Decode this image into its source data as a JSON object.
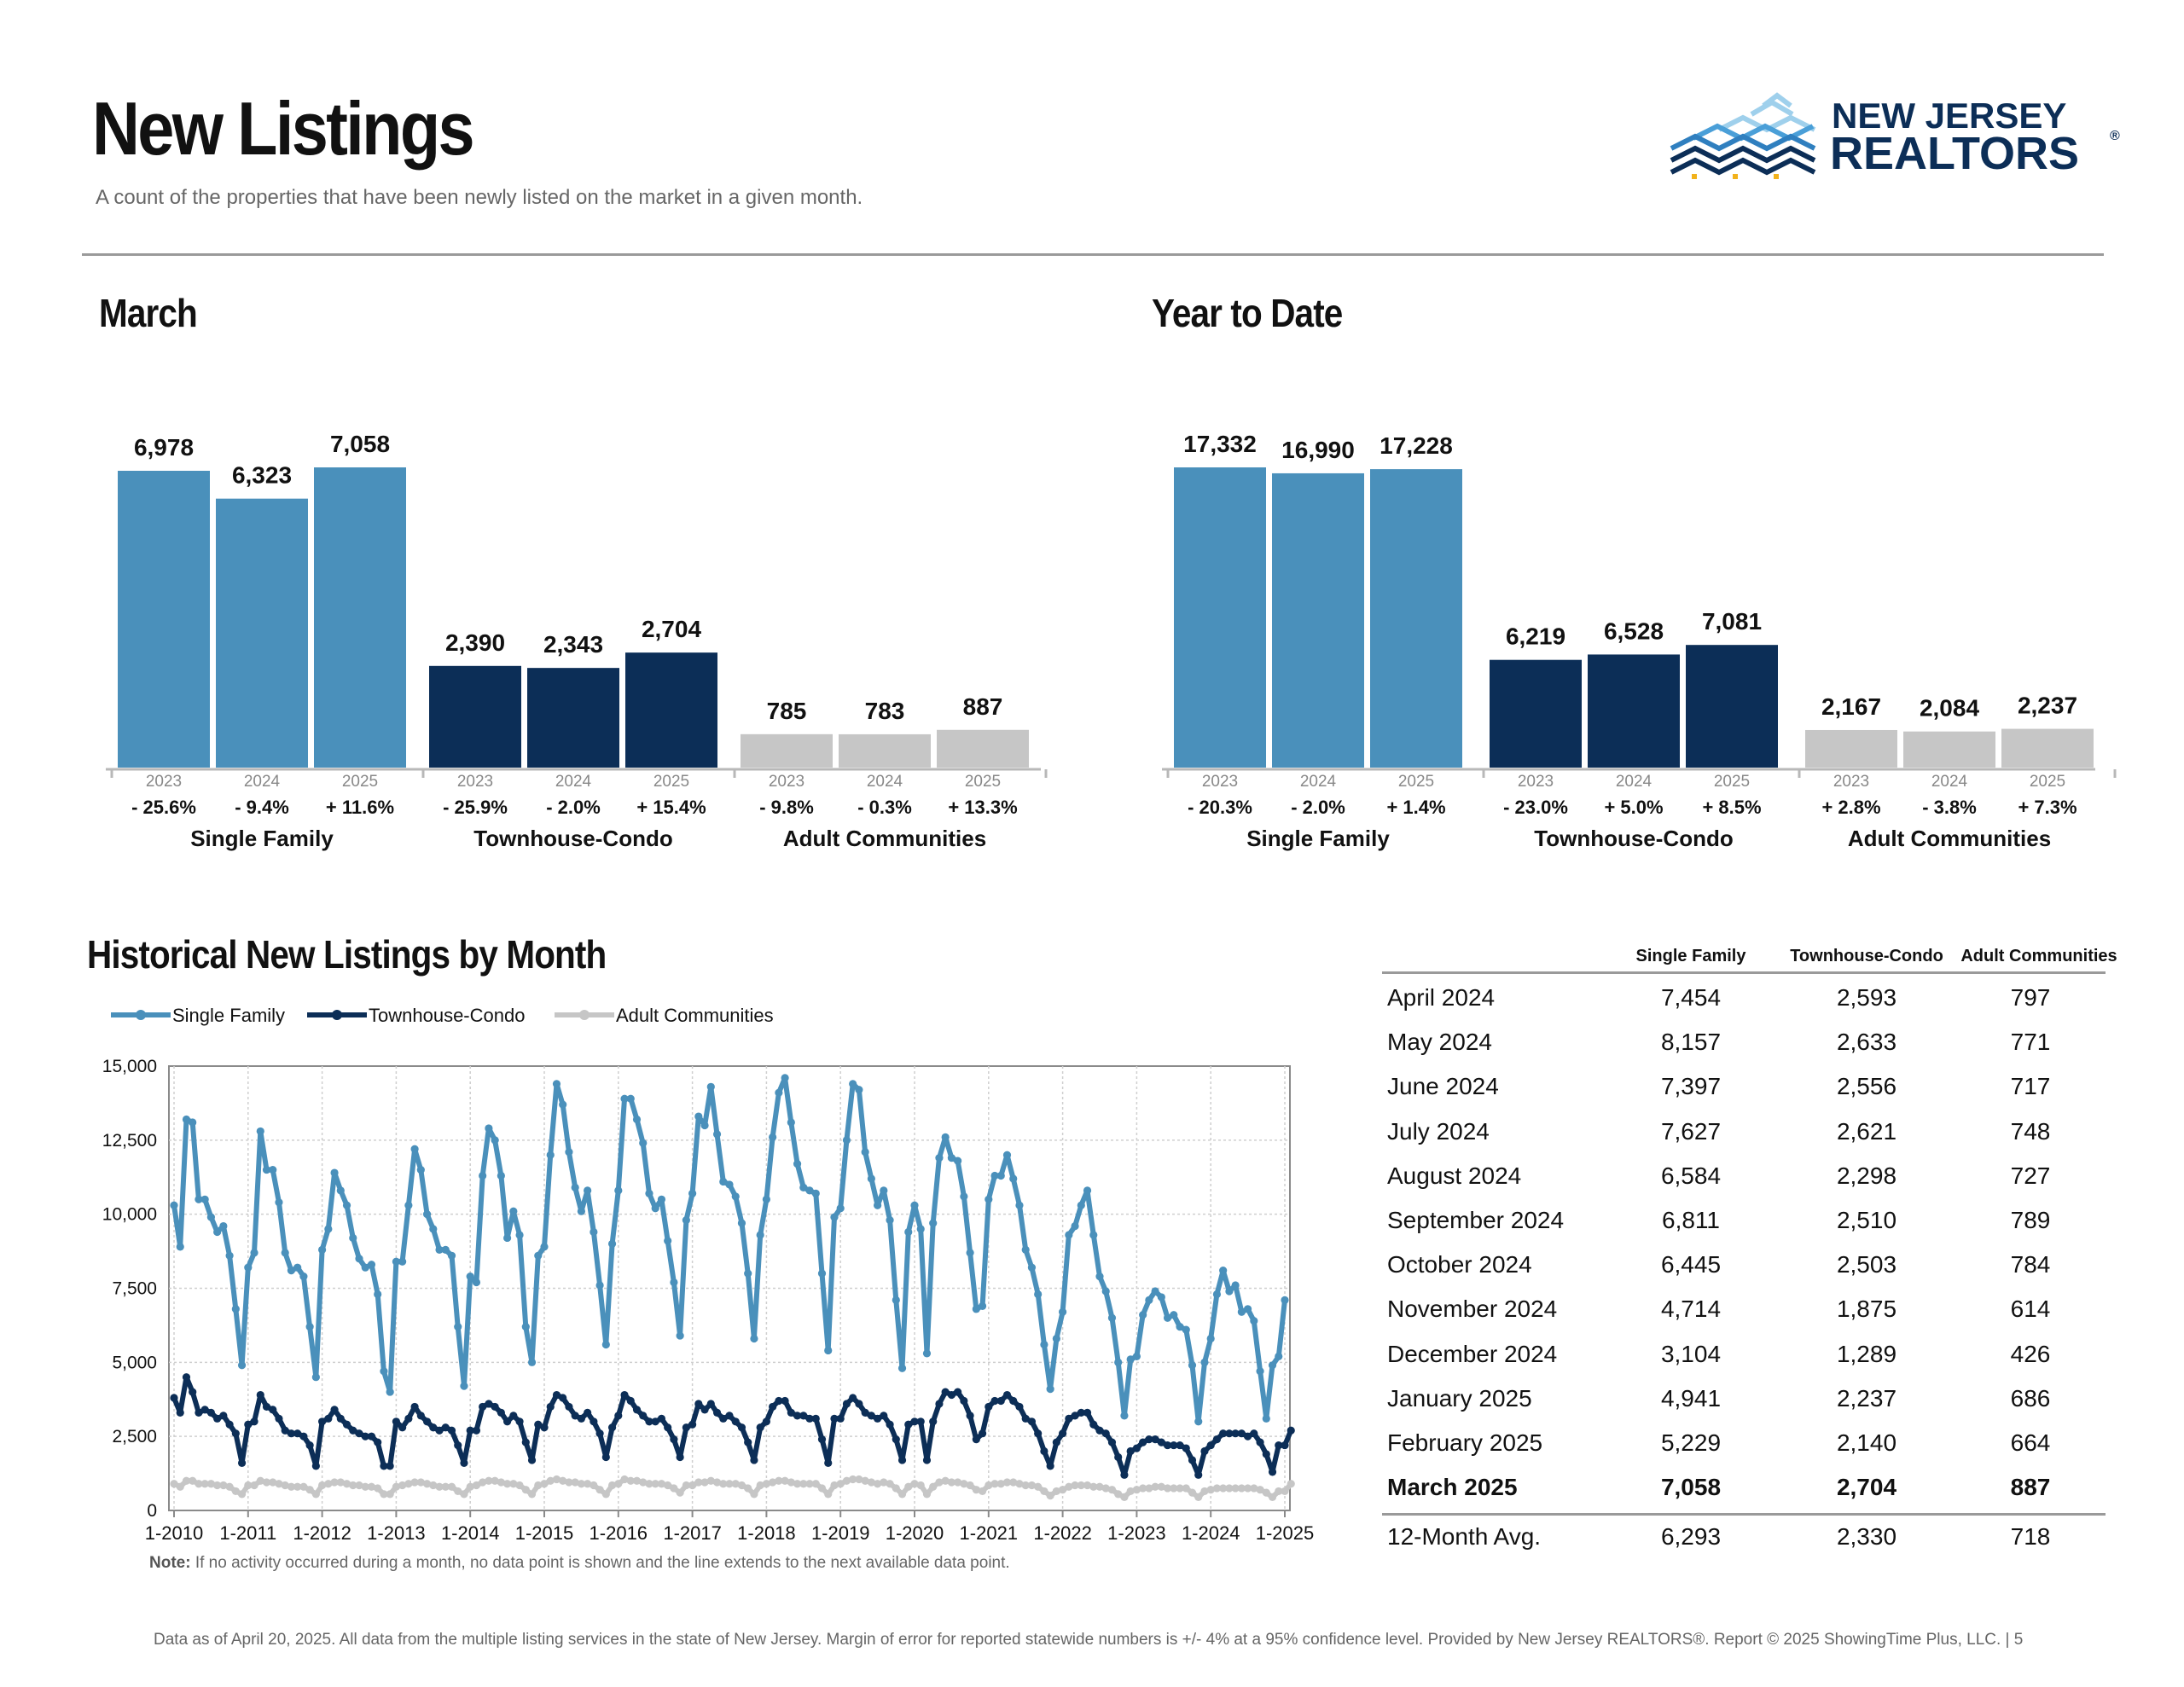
{
  "header": {
    "title": "New Listings",
    "subtitle": "A count of the properties that have been newly listed on the market in a given month."
  },
  "logo": {
    "line1": "NEW JERSEY",
    "line2": "REALTORS",
    "mark": "®"
  },
  "colors": {
    "single_family": "#4a90bb",
    "townhouse_condo": "#0c2e57",
    "adult_communities": "#c6c6c6"
  },
  "chart_data": [
    {
      "type": "bar",
      "title": "March",
      "groups": [
        {
          "name": "Single Family",
          "years": [
            "2023",
            "2024",
            "2025"
          ],
          "values": [
            6978,
            6323,
            7058
          ],
          "value_labels": [
            "6,978",
            "6,323",
            "7,058"
          ],
          "changes": [
            "- 25.6%",
            "- 9.4%",
            "+ 11.6%"
          ]
        },
        {
          "name": "Townhouse-Condo",
          "years": [
            "2023",
            "2024",
            "2025"
          ],
          "values": [
            2390,
            2343,
            2704
          ],
          "value_labels": [
            "2,390",
            "2,343",
            "2,704"
          ],
          "changes": [
            "- 25.9%",
            "- 2.0%",
            "+ 15.4%"
          ]
        },
        {
          "name": "Adult Communities",
          "years": [
            "2023",
            "2024",
            "2025"
          ],
          "values": [
            785,
            783,
            887
          ],
          "value_labels": [
            "785",
            "783",
            "887"
          ],
          "changes": [
            "- 9.8%",
            "- 0.3%",
            "+ 13.3%"
          ]
        }
      ]
    },
    {
      "type": "bar",
      "title": "Year to Date",
      "groups": [
        {
          "name": "Single Family",
          "years": [
            "2023",
            "2024",
            "2025"
          ],
          "values": [
            17332,
            16990,
            17228
          ],
          "value_labels": [
            "17,332",
            "16,990",
            "17,228"
          ],
          "changes": [
            "- 20.3%",
            "- 2.0%",
            "+ 1.4%"
          ]
        },
        {
          "name": "Townhouse-Condo",
          "years": [
            "2023",
            "2024",
            "2025"
          ],
          "values": [
            6219,
            6528,
            7081
          ],
          "value_labels": [
            "6,219",
            "6,528",
            "7,081"
          ],
          "changes": [
            "- 23.0%",
            "+ 5.0%",
            "+ 8.5%"
          ]
        },
        {
          "name": "Adult Communities",
          "years": [
            "2023",
            "2024",
            "2025"
          ],
          "values": [
            2167,
            2084,
            2237
          ],
          "value_labels": [
            "2,167",
            "2,084",
            "2,237"
          ],
          "changes": [
            "+ 2.8%",
            "- 3.8%",
            "+ 7.3%"
          ]
        }
      ]
    },
    {
      "type": "line",
      "title": "Historical New Listings by Month",
      "ylim": [
        0,
        15000
      ],
      "yticks": [
        "0",
        "2,500",
        "5,000",
        "7,500",
        "10,000",
        "12,500",
        "15,000"
      ],
      "xticks": [
        "1-2010",
        "1-2011",
        "1-2012",
        "1-2013",
        "1-2014",
        "1-2015",
        "1-2016",
        "1-2017",
        "1-2018",
        "1-2019",
        "1-2020",
        "1-2021",
        "1-2022",
        "1-2023",
        "1-2024",
        "1-2025"
      ],
      "grid": true,
      "legend_position": "top-left",
      "series": [
        {
          "name": "Single Family",
          "values": [
            10300,
            8900,
            13200,
            13100,
            10500,
            10500,
            9900,
            9400,
            9600,
            8600,
            6800,
            4900,
            8200,
            8700,
            12800,
            11500,
            11500,
            10400,
            8700,
            8100,
            8200,
            7900,
            6200,
            4500,
            8800,
            9500,
            11400,
            10800,
            10300,
            9200,
            8500,
            8200,
            8300,
            7300,
            4700,
            4000,
            8400,
            8400,
            10300,
            12200,
            11500,
            10000,
            9500,
            8800,
            8800,
            8600,
            6200,
            4200,
            7900,
            7700,
            11300,
            12900,
            12500,
            11300,
            9200,
            10100,
            9300,
            6200,
            5000,
            8600,
            8900,
            12000,
            14400,
            13700,
            12100,
            10900,
            10100,
            10800,
            9400,
            7600,
            5600,
            9000,
            10800,
            13900,
            13900,
            13200,
            12400,
            10700,
            10200,
            10500,
            9100,
            7700,
            5900,
            9800,
            10700,
            13300,
            13000,
            14300,
            12700,
            11100,
            11000,
            10600,
            9700,
            8000,
            5800,
            9300,
            10500,
            12600,
            14100,
            14600,
            13100,
            11700,
            10900,
            10800,
            10700,
            8000,
            5400,
            9900,
            10200,
            12500,
            14400,
            14200,
            12100,
            11200,
            10300,
            10800,
            9800,
            7100,
            4800,
            9400,
            10300,
            9500,
            5300,
            9700,
            11900,
            12600,
            11900,
            11800,
            10600,
            8700,
            6800,
            6900,
            10500,
            11300,
            11300,
            12000,
            11200,
            10300,
            8800,
            8200,
            7300,
            5600,
            4100,
            5800,
            6700,
            9300,
            9600,
            10300,
            10800,
            9300,
            7900,
            7400,
            6500,
            5000,
            3200,
            5100,
            5200,
            6600,
            7100,
            7400,
            7200,
            6500,
            6600,
            6200,
            6100,
            4900,
            3000,
            5000,
            5800,
            7300,
            8100,
            7400,
            7600,
            6700,
            6800,
            6400,
            4700,
            3100,
            4900,
            5200,
            7100
          ]
        },
        {
          "name": "Townhouse-Condo",
          "values": [
            3800,
            3300,
            4500,
            4000,
            3300,
            3400,
            3300,
            3100,
            3200,
            2900,
            2600,
            1600,
            2900,
            3000,
            3900,
            3500,
            3400,
            3100,
            2700,
            2600,
            2600,
            2500,
            2200,
            1500,
            3000,
            3100,
            3400,
            3100,
            2900,
            2700,
            2600,
            2500,
            2500,
            2300,
            1500,
            1500,
            3000,
            2800,
            3100,
            3500,
            3200,
            3000,
            2800,
            2700,
            2800,
            2700,
            2200,
            1600,
            2700,
            2700,
            3500,
            3600,
            3500,
            3300,
            3000,
            3200,
            3000,
            2300,
            1700,
            2900,
            2800,
            3500,
            3900,
            3800,
            3500,
            3200,
            3100,
            3300,
            3000,
            2600,
            1800,
            2800,
            3200,
            3900,
            3700,
            3400,
            3200,
            3000,
            3000,
            3100,
            2800,
            2400,
            1800,
            2800,
            2900,
            3600,
            3400,
            3600,
            3300,
            3100,
            3200,
            3000,
            2800,
            2300,
            1700,
            2800,
            3000,
            3500,
            3700,
            3700,
            3300,
            3200,
            3200,
            3100,
            3100,
            2400,
            1600,
            3100,
            3100,
            3600,
            3800,
            3600,
            3300,
            3200,
            3100,
            3200,
            2900,
            2400,
            1700,
            2900,
            3000,
            3000,
            1700,
            3000,
            3600,
            4000,
            3900,
            4000,
            3700,
            3200,
            2400,
            2600,
            3500,
            3700,
            3700,
            3900,
            3700,
            3500,
            3100,
            3000,
            2600,
            2000,
            1500,
            2300,
            2600,
            3100,
            3200,
            3300,
            3300,
            2900,
            2700,
            2600,
            2300,
            1800,
            1200,
            2000,
            2100,
            2300,
            2400,
            2400,
            2300,
            2200,
            2200,
            2200,
            2100,
            1700,
            1200,
            2000,
            2200,
            2400,
            2600,
            2600,
            2600,
            2600,
            2500,
            2600,
            2300,
            1900,
            1300,
            2200,
            2200,
            2700
          ]
        },
        {
          "name": "Adult Communities",
          "values": [
            900,
            800,
            1000,
            1000,
            900,
            900,
            900,
            850,
            850,
            800,
            650,
            550,
            850,
            850,
            1000,
            950,
            950,
            900,
            850,
            800,
            800,
            800,
            700,
            550,
            850,
            900,
            950,
            950,
            900,
            850,
            850,
            800,
            800,
            750,
            550,
            550,
            800,
            850,
            900,
            950,
            950,
            900,
            850,
            800,
            800,
            800,
            650,
            550,
            800,
            850,
            950,
            1000,
            1000,
            950,
            900,
            900,
            850,
            700,
            550,
            850,
            900,
            1000,
            1050,
            1000,
            950,
            950,
            900,
            900,
            850,
            700,
            550,
            850,
            900,
            1050,
            1000,
            1000,
            950,
            900,
            900,
            900,
            850,
            750,
            600,
            850,
            850,
            950,
            950,
            1000,
            950,
            900,
            900,
            900,
            850,
            750,
            550,
            850,
            900,
            950,
            1000,
            1000,
            950,
            900,
            900,
            900,
            900,
            750,
            550,
            850,
            900,
            1000,
            1050,
            1050,
            1000,
            950,
            900,
            950,
            900,
            750,
            550,
            800,
            900,
            850,
            550,
            800,
            950,
            1000,
            950,
            950,
            900,
            850,
            700,
            650,
            850,
            900,
            900,
            950,
            950,
            900,
            850,
            850,
            800,
            650,
            500,
            650,
            700,
            800,
            850,
            850,
            850,
            800,
            800,
            750,
            700,
            550,
            450,
            650,
            700,
            750,
            750,
            800,
            800,
            750,
            750,
            750,
            750,
            600,
            450,
            650,
            700,
            750,
            750,
            750,
            750,
            750,
            750,
            750,
            700,
            600,
            450,
            650,
            650,
            900
          ]
        }
      ]
    }
  ],
  "historical": {
    "legend": [
      "Single Family",
      "Townhouse-Condo",
      "Adult Communities"
    ],
    "note_label": "Note:",
    "note_text": " If no activity occurred during a month, no data point is shown and the line extends to the next available data point."
  },
  "table": {
    "headers": [
      "Single Family",
      "Townhouse-Condo",
      "Adult Communities"
    ],
    "rows": [
      {
        "label": "April 2024",
        "sf": "7,454",
        "tc": "2,593",
        "ac": "797"
      },
      {
        "label": "May 2024",
        "sf": "8,157",
        "tc": "2,633",
        "ac": "771"
      },
      {
        "label": "June 2024",
        "sf": "7,397",
        "tc": "2,556",
        "ac": "717"
      },
      {
        "label": "July 2024",
        "sf": "7,627",
        "tc": "2,621",
        "ac": "748"
      },
      {
        "label": "August 2024",
        "sf": "6,584",
        "tc": "2,298",
        "ac": "727"
      },
      {
        "label": "September 2024",
        "sf": "6,811",
        "tc": "2,510",
        "ac": "789"
      },
      {
        "label": "October 2024",
        "sf": "6,445",
        "tc": "2,503",
        "ac": "784"
      },
      {
        "label": "November 2024",
        "sf": "4,714",
        "tc": "1,875",
        "ac": "614"
      },
      {
        "label": "December 2024",
        "sf": "3,104",
        "tc": "1,289",
        "ac": "426"
      },
      {
        "label": "January 2025",
        "sf": "4,941",
        "tc": "2,237",
        "ac": "686"
      },
      {
        "label": "February 2025",
        "sf": "5,229",
        "tc": "2,140",
        "ac": "664"
      },
      {
        "label": "March 2025",
        "sf": "7,058",
        "tc": "2,704",
        "ac": "887",
        "bold": true
      }
    ],
    "avg": {
      "label": "12-Month Avg.",
      "sf": "6,293",
      "tc": "2,330",
      "ac": "718"
    }
  },
  "footer": {
    "text": "Data as of April 20, 2025. All data from the multiple listing services in the state of New Jersey. Margin of error for reported statewide numbers is +/- 4% at a 95% confidence level. Provided by New Jersey REALTORS®. Report © 2025 ShowingTime Plus, LLC.  |  5"
  }
}
